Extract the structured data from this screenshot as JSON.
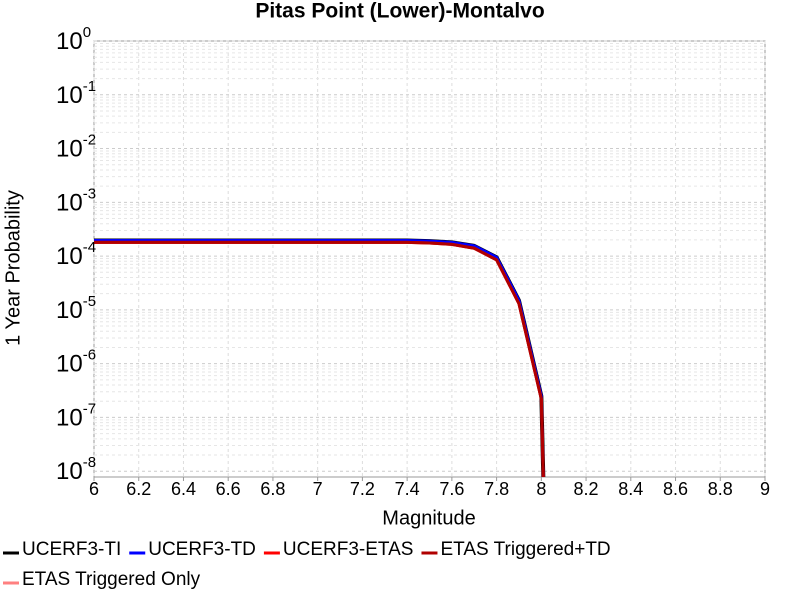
{
  "chart_data": {
    "type": "line",
    "title": "Pitas Point (Lower)-Montalvo",
    "x_label": "Magnitude",
    "y_label": "1 Year Probability",
    "log_y": true,
    "grid": true,
    "legend": "bottom",
    "x": [
      6.0,
      6.1,
      6.2,
      6.3,
      6.4,
      6.5,
      6.6,
      6.7,
      6.8,
      6.9,
      7.0,
      7.1,
      7.2,
      7.3,
      7.4,
      7.5,
      7.6,
      7.7,
      7.8,
      7.9,
      8.0,
      8.01
    ],
    "series": [
      {
        "name": "UCERF3-TI",
        "color": "#000000",
        "width": 4,
        "values": [
          0.000195,
          0.000195,
          0.000195,
          0.000195,
          0.000195,
          0.000195,
          0.000195,
          0.000195,
          0.000195,
          0.000195,
          0.000195,
          0.000195,
          0.000195,
          0.000195,
          0.000195,
          0.00019,
          0.00018,
          0.000155,
          9.5e-05,
          1.5e-05,
          2.5e-07,
          5e-09
        ]
      },
      {
        "name": "UCERF3-TD",
        "color": "#0000ff",
        "width": 3,
        "values": [
          0.000195,
          0.000195,
          0.000195,
          0.000195,
          0.000195,
          0.000195,
          0.000195,
          0.000195,
          0.000195,
          0.000195,
          0.000195,
          0.000195,
          0.000195,
          0.000195,
          0.000195,
          0.00019,
          0.00018,
          0.000155,
          9.5e-05,
          1.5e-05,
          2.5e-07,
          5e-09
        ]
      },
      {
        "name": "UCERF3-ETAS",
        "color": "#ff0000",
        "width": 3,
        "values": [
          0.00018,
          0.00018,
          0.00018,
          0.00018,
          0.00018,
          0.00018,
          0.00018,
          0.00018,
          0.00018,
          0.00018,
          0.00018,
          0.00018,
          0.00018,
          0.00018,
          0.00018,
          0.000175,
          0.000165,
          0.00014,
          8.5e-05,
          1.3e-05,
          2.2e-07,
          5e-09
        ]
      },
      {
        "name": "ETAS Triggered+TD",
        "color": "#b00000",
        "width": 3,
        "values": [
          0.00018,
          0.00018,
          0.00018,
          0.00018,
          0.00018,
          0.00018,
          0.00018,
          0.00018,
          0.00018,
          0.00018,
          0.00018,
          0.00018,
          0.00018,
          0.00018,
          0.00018,
          0.000175,
          0.000165,
          0.00014,
          8.5e-05,
          1.3e-05,
          2.2e-07,
          5e-09
        ]
      },
      {
        "name": "ETAS Triggered Only",
        "color": "#ff8080",
        "width": 2,
        "values": [
          null,
          null,
          null,
          null,
          null,
          null,
          null,
          null,
          null,
          null,
          null,
          null,
          null,
          null,
          null,
          null,
          null,
          null,
          null,
          null,
          null,
          null
        ]
      }
    ],
    "xlim": [
      6,
      9
    ],
    "xticks": [
      6,
      6.2,
      6.4,
      6.6,
      6.8,
      7,
      7.2,
      7.4,
      7.6,
      7.8,
      8,
      8.2,
      8.4,
      8.6,
      8.8,
      9
    ],
    "ylim": [
      7.8e-09,
      1
    ],
    "yticks": [
      {
        "value": 1,
        "label": "10^0"
      },
      {
        "value": 0.1,
        "label": "10^-1"
      },
      {
        "value": 0.01,
        "label": "10^-2"
      },
      {
        "value": 0.001,
        "label": "10^-3"
      },
      {
        "value": 0.0001,
        "label": "10^-4"
      },
      {
        "value": 1e-05,
        "label": "10^-5"
      },
      {
        "value": 1e-06,
        "label": "10^-6"
      },
      {
        "value": 1e-07,
        "label": "10^-7"
      },
      {
        "value": 1e-08,
        "label": "10^-8"
      }
    ]
  }
}
